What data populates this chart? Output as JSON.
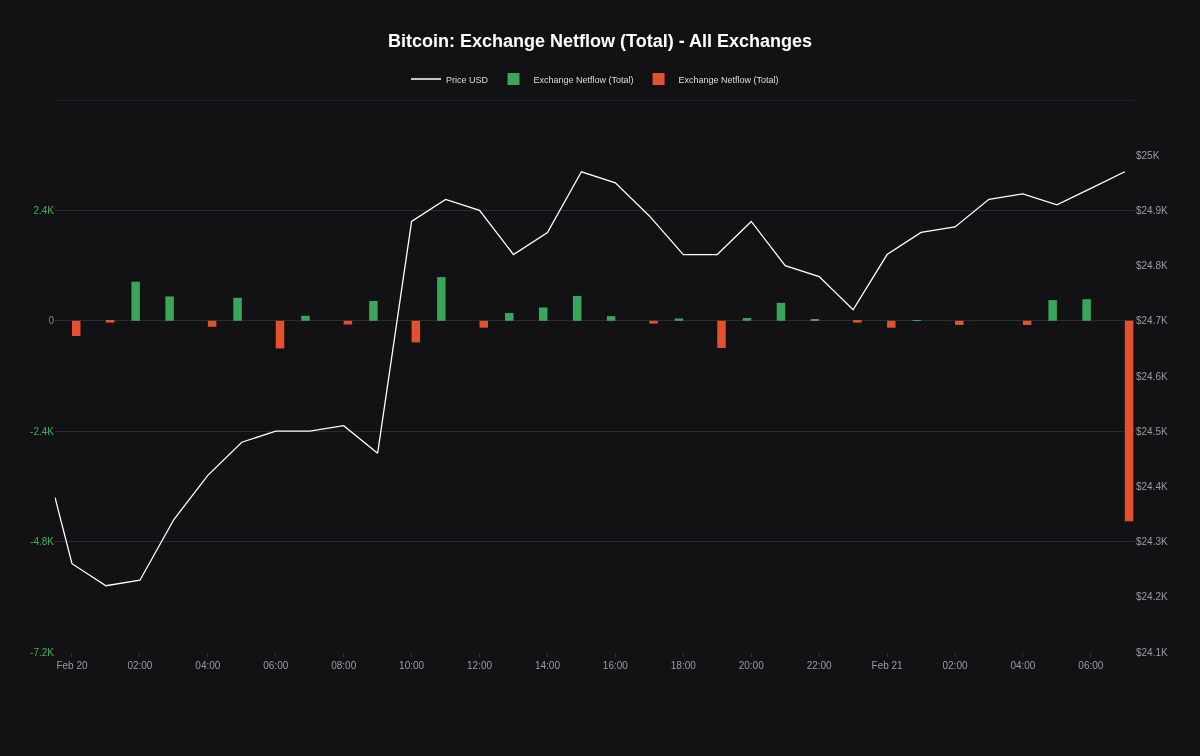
{
  "chart_data": {
    "type": "bar",
    "title": "Bitcoin: Exchange Netflow (Total) - All Exchanges",
    "x": [
      "--02-20T00:00",
      "--02-20T01:00",
      "--02-20T02:00",
      "--02-20T03:00",
      "--02-20T04:00",
      "--02-20T05:00",
      "--02-20T06:00",
      "--02-20T07:00",
      "--02-20T08:00",
      "--02-20T09:00",
      "--02-20T10:00",
      "--02-20T11:00",
      "--02-20T12:00",
      "--02-20T13:00",
      "--02-20T14:00",
      "--02-20T15:00",
      "--02-20T16:00",
      "--02-20T17:00",
      "--02-20T18:00",
      "--02-20T19:00",
      "--02-20T20:00",
      "--02-20T21:00",
      "--02-20T22:00",
      "--02-20T23:00",
      "--02-21T00:00",
      "--02-21T01:00",
      "--02-21T02:00",
      "--02-21T03:00",
      "--02-21T04:00",
      "--02-21T05:00",
      "--02-21T06:00",
      "--02-21T07:00"
    ],
    "xlim": [
      "--02-19T23:30",
      "--02-21T07:18"
    ],
    "xticks": [
      {
        "value": "--02-20T00:00",
        "label": "Feb 20"
      },
      {
        "value": "--02-20T02:00",
        "label": "02:00"
      },
      {
        "value": "--02-20T04:00",
        "label": "04:00"
      },
      {
        "value": "--02-20T06:00",
        "label": "06:00"
      },
      {
        "value": "--02-20T08:00",
        "label": "08:00"
      },
      {
        "value": "--02-20T10:00",
        "label": "10:00"
      },
      {
        "value": "--02-20T12:00",
        "label": "12:00"
      },
      {
        "value": "--02-20T14:00",
        "label": "14:00"
      },
      {
        "value": "--02-20T16:00",
        "label": "16:00"
      },
      {
        "value": "--02-20T18:00",
        "label": "18:00"
      },
      {
        "value": "--02-20T20:00",
        "label": "20:00"
      },
      {
        "value": "--02-20T22:00",
        "label": "22:00"
      },
      {
        "value": "--02-21T00:00",
        "label": "Feb 21"
      },
      {
        "value": "--02-21T02:00",
        "label": "02:00"
      },
      {
        "value": "--02-21T04:00",
        "label": "04:00"
      },
      {
        "value": "--02-21T06:00",
        "label": "06:00"
      }
    ],
    "ylim": [
      -7200,
      4800
    ],
    "yticks": [
      {
        "value": -7200,
        "label": "-7.2K"
      },
      {
        "value": -4800,
        "label": "-4.8K"
      },
      {
        "value": -2400,
        "label": "-2.4K"
      },
      0,
      {
        "value": 2400,
        "label": "2.4K"
      },
      {
        "value": 4800,
        "label": null
      }
    ],
    "y2lim": [
      24100,
      25100
    ],
    "y2ticks": [
      {
        "value": 24100,
        "label": "$24.1K"
      },
      {
        "value": 24200,
        "label": "$24.2K"
      },
      {
        "value": 24300,
        "label": "$24.3K"
      },
      {
        "value": 24400,
        "label": "$24.4K"
      },
      {
        "value": 24500,
        "label": "$24.5K"
      },
      {
        "value": 24600,
        "label": "$24.6K"
      },
      {
        "value": 24700,
        "label": "$24.7K"
      },
      {
        "value": 24800,
        "label": "$24.8K"
      },
      {
        "value": 24900,
        "label": "$24.9K"
      },
      {
        "value": 25000,
        "label": "$25K"
      }
    ],
    "grid": "y",
    "legend": "top",
    "series": [
      {
        "name": "Price USD",
        "type": "line",
        "axis": "y2",
        "color": "#ffffff",
        "x": [
          "--02-19T23:30",
          "--02-20T00:00",
          "--02-20T01:00",
          "--02-20T02:00",
          "--02-20T03:00",
          "--02-20T04:00",
          "--02-20T05:00",
          "--02-20T06:00",
          "--02-20T07:00",
          "--02-20T08:00",
          "--02-20T09:00",
          "--02-20T10:00",
          "--02-20T11:00",
          "--02-20T12:00",
          "--02-20T13:00",
          "--02-20T14:00",
          "--02-20T15:00",
          "--02-20T16:00",
          "--02-20T17:00",
          "--02-20T18:00",
          "--02-20T19:00",
          "--02-20T20:00",
          "--02-20T21:00",
          "--02-20T22:00",
          "--02-20T23:00",
          "--02-21T00:00",
          "--02-21T01:00",
          "--02-21T02:00",
          "--02-21T03:00",
          "--02-21T04:00",
          "--02-21T05:00",
          "--02-21T06:00",
          "--02-21T07:00"
        ],
        "values": [
          24380,
          24260,
          24220,
          24230,
          24340,
          24420,
          24480,
          24500,
          24500,
          24510,
          24460,
          24880,
          24920,
          24900,
          24820,
          24860,
          24970,
          24950,
          24890,
          24820,
          24820,
          24880,
          24800,
          24780,
          24720,
          24820,
          24860,
          24870,
          24920,
          24930,
          24910,
          24940,
          24970
        ]
      },
      {
        "name": "Exchange Netflow (Total)",
        "color": "#3ba55c",
        "values": [
          null,
          null,
          850,
          530,
          null,
          500,
          null,
          110,
          null,
          430,
          null,
          950,
          null,
          170,
          290,
          540,
          100,
          null,
          50,
          null,
          60,
          390,
          40,
          null,
          null,
          10,
          null,
          null,
          null,
          450,
          470,
          null
        ]
      },
      {
        "name": "Exchange Netflow (Total)",
        "color": "#e5502e",
        "values": [
          -330,
          -40,
          null,
          null,
          -130,
          null,
          -600,
          null,
          -80,
          null,
          -470,
          null,
          -150,
          null,
          null,
          null,
          null,
          -60,
          null,
          -590,
          null,
          null,
          null,
          -40,
          -150,
          null,
          -90,
          null,
          -90,
          null,
          null,
          -4360
        ]
      }
    ]
  }
}
